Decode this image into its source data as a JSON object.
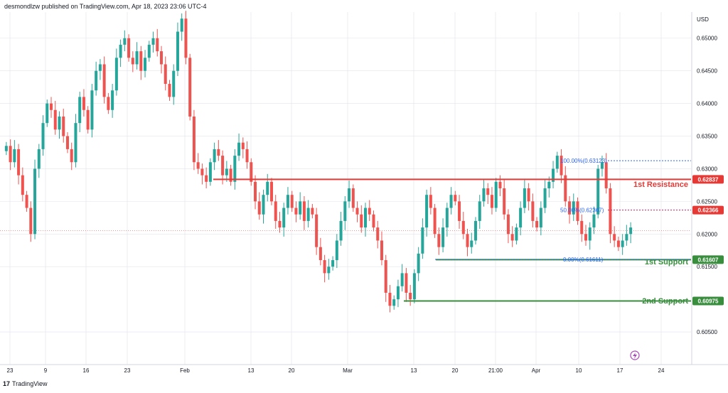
{
  "header": {
    "publisher": "desmondlzw published on TradingView.com, Apr 18, 2023 23:06 UTC-4"
  },
  "footer": {
    "logo_mark": "17",
    "logo_text": "TradingView"
  },
  "colors": {
    "up": "#26a69a",
    "down": "#ef5350",
    "resistance": "#e53935",
    "support": "#388e3c",
    "fib": "#2962ff",
    "grid": "#e0e3eb",
    "axis_text": "#131722",
    "pink": "#d81b60"
  },
  "chart_data": {
    "type": "candlestick",
    "currency_label": "USD",
    "ylim": [
      0.6,
      0.654
    ],
    "y_ticks": [
      "0.65000",
      "0.64500",
      "0.64000",
      "0.63500",
      "0.63000",
      "0.62500",
      "0.62000",
      "0.61500",
      "0.60500"
    ],
    "y_tick_values": [
      0.65,
      0.645,
      0.64,
      0.635,
      0.63,
      0.625,
      0.62,
      0.615,
      0.605
    ],
    "x_ticks": [
      "23",
      "9",
      "16",
      "23",
      "Feb",
      "13",
      "20",
      "Mar",
      "13",
      "20",
      "21:00",
      "Apr",
      "10",
      "17",
      "24"
    ],
    "series": [
      {
        "name": "closes",
        "values": [
          0.6335,
          0.631,
          0.633,
          0.629,
          0.626,
          0.624,
          0.62,
          0.63,
          0.633,
          0.637,
          0.64,
          0.639,
          0.636,
          0.638,
          0.635,
          0.633,
          0.631,
          0.637,
          0.641,
          0.639,
          0.636,
          0.642,
          0.645,
          0.646,
          0.641,
          0.639,
          0.642,
          0.647,
          0.649,
          0.65,
          0.647,
          0.646,
          0.648,
          0.645,
          0.647,
          0.649,
          0.65,
          0.648,
          0.646,
          0.643,
          0.641,
          0.645,
          0.651,
          0.653,
          0.647,
          0.638,
          0.631,
          0.63,
          0.629,
          0.628,
          0.631,
          0.633,
          0.632,
          0.629,
          0.63,
          0.628,
          0.632,
          0.634,
          0.633,
          0.631,
          0.628,
          0.625,
          0.623,
          0.626,
          0.628,
          0.625,
          0.622,
          0.621,
          0.624,
          0.626,
          0.624,
          0.623,
          0.625,
          0.622,
          0.624,
          0.623,
          0.618,
          0.616,
          0.614,
          0.615,
          0.616,
          0.619,
          0.622,
          0.625,
          0.627,
          0.624,
          0.623,
          0.621,
          0.624,
          0.623,
          0.621,
          0.619,
          0.616,
          0.611,
          0.609,
          0.61,
          0.612,
          0.614,
          0.611,
          0.61,
          0.614,
          0.617,
          0.621,
          0.626,
          0.624,
          0.62,
          0.618,
          0.621,
          0.624,
          0.626,
          0.625,
          0.622,
          0.62,
          0.618,
          0.619,
          0.622,
          0.625,
          0.627,
          0.626,
          0.624,
          0.628,
          0.627,
          0.623,
          0.62,
          0.619,
          0.621,
          0.624,
          0.627,
          0.625,
          0.622,
          0.621,
          0.624,
          0.627,
          0.628,
          0.63,
          0.632,
          0.629,
          0.625,
          0.623,
          0.625,
          0.622,
          0.62,
          0.619,
          0.621,
          0.623,
          0.63,
          0.631,
          0.627,
          0.62,
          0.619,
          0.618,
          0.619,
          0.62,
          0.621
        ]
      }
    ],
    "levels": [
      {
        "name": "1st Resistance",
        "price_label": "0.62837",
        "price": 0.62837,
        "kind": "resistance"
      },
      {
        "name": "1st Support",
        "price_label": "0.61607",
        "price": 0.61607,
        "kind": "support"
      },
      {
        "name": "2nd Support",
        "price_label": "0.60975",
        "price": 0.60975,
        "kind": "support"
      }
    ],
    "fib_levels": [
      {
        "label": "100.00%(0.63123)",
        "price": 0.63123
      },
      {
        "label": "50.00%(0.62367)",
        "price": 0.62367
      },
      {
        "label": "0.00%(0.61611)",
        "price": 0.61611
      }
    ],
    "fib_price_tag": {
      "price_label": "0.62366",
      "price": 0.62366
    },
    "current_price": 0.6205,
    "grid": true
  }
}
